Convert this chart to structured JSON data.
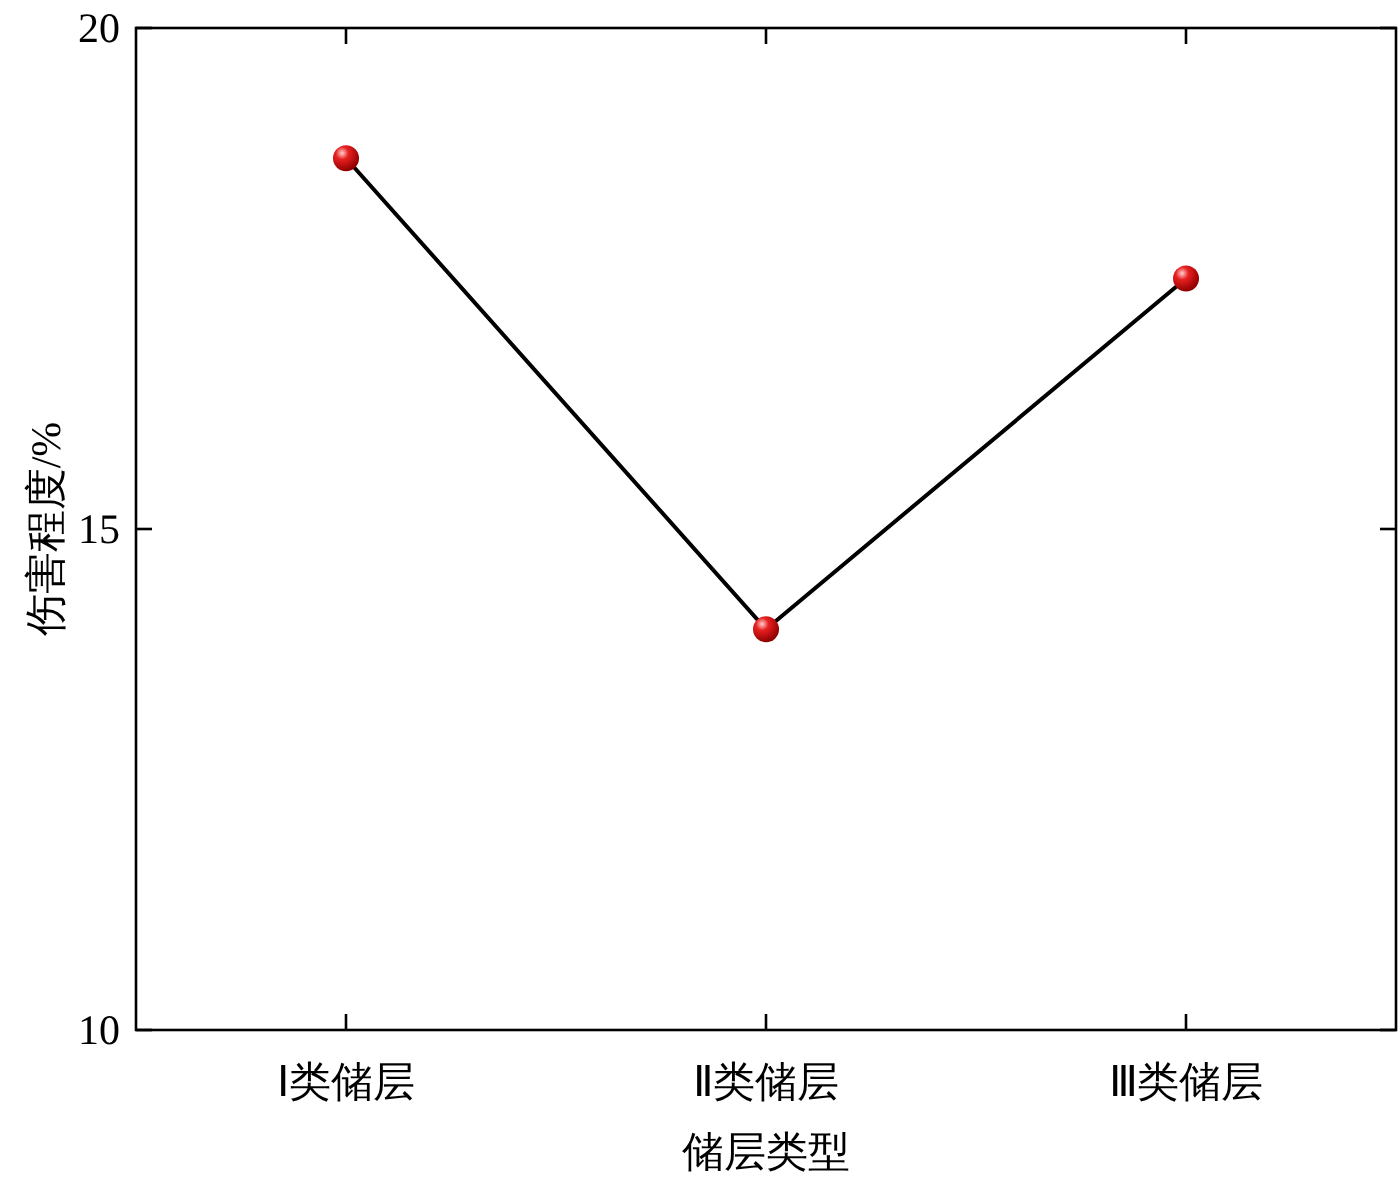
{
  "chart_data": {
    "type": "line",
    "xlabel": "储层类型",
    "ylabel": "伤害程度/%",
    "categories": [
      "Ⅰ类储层",
      "Ⅱ类储层",
      "Ⅲ类储层"
    ],
    "series": [
      {
        "color": "#000000",
        "values": [
          18.7,
          14.0,
          17.5
        ]
      }
    ],
    "marker": "circle",
    "ylim": [
      10,
      20
    ],
    "yticks": [
      10,
      15,
      20
    ],
    "grid": false
  }
}
